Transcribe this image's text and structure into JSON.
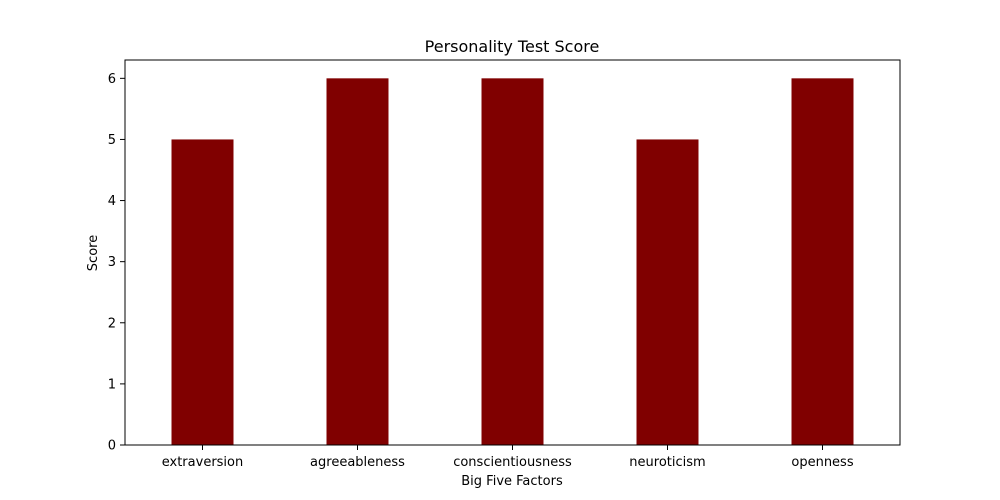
{
  "chart_data": {
    "type": "bar",
    "title": "Personality Test Score",
    "xlabel": "Big Five Factors",
    "ylabel": "Score",
    "categories": [
      "extraversion",
      "agreeableness",
      "conscientiousness",
      "neuroticism",
      "openness"
    ],
    "values": [
      5,
      6,
      6,
      5,
      6
    ],
    "ylim": [
      0,
      6.3
    ],
    "yticks": [
      "0",
      "1",
      "2",
      "3",
      "4",
      "5",
      "6"
    ],
    "bar_color": "#800000",
    "grid": false,
    "legend": "none"
  }
}
